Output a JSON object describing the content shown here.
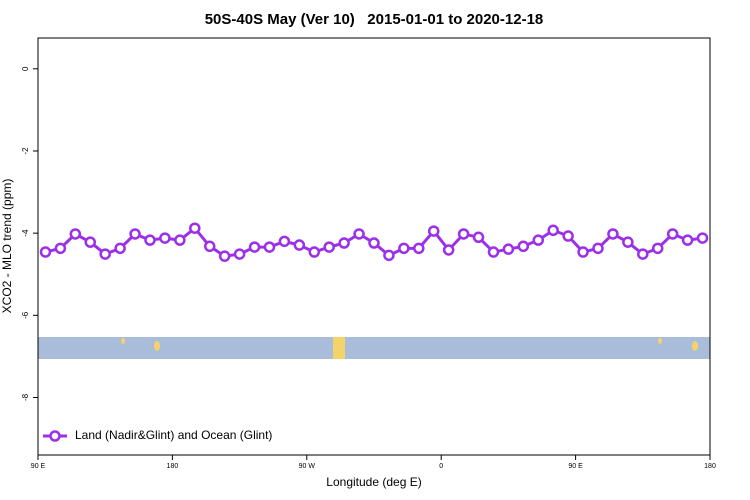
{
  "chart_data": {
    "type": "line",
    "title": "50S-40S May (Ver 10)   2015-01-01 to 2020-12-18",
    "xlabel": "Longitude (deg E)",
    "ylabel": "XCO2 - MLO trend (ppm)",
    "x": [
      95,
      105,
      115,
      125,
      135,
      145,
      155,
      165,
      175,
      185,
      195,
      205,
      215,
      225,
      235,
      245,
      255,
      265,
      275,
      285,
      295,
      305,
      315,
      325,
      335,
      345,
      355,
      365,
      375,
      385,
      395,
      405,
      415,
      425,
      435,
      445,
      455,
      465,
      475,
      485,
      495,
      505,
      515,
      525,
      535
    ],
    "series": [
      {
        "name": "Land (Nadir&Glint) and Ocean (Glint)",
        "color": "#9b30e8",
        "values": [
          -4.46,
          -4.37,
          -4.02,
          -4.22,
          -4.51,
          -4.37,
          -4.02,
          -4.17,
          -4.12,
          -4.17,
          -3.88,
          -4.32,
          -4.56,
          -4.51,
          -4.34,
          -4.34,
          -4.2,
          -4.29,
          -4.46,
          -4.34,
          -4.24,
          -4.02,
          -4.24,
          -4.54,
          -4.37,
          -4.37,
          -3.95,
          -4.41,
          -4.02,
          -4.1,
          -4.46,
          -4.39,
          -4.32,
          -4.17,
          -3.93,
          -4.07,
          -4.46,
          -4.37,
          -4.02,
          -4.22,
          -4.51,
          -4.37,
          -4.02,
          -4.17,
          -4.12
        ]
      }
    ],
    "xlim": [
      90,
      540
    ],
    "xticks": [
      {
        "value": 90,
        "label": "90 E"
      },
      180,
      {
        "value": 270,
        "label": "90 W"
      },
      {
        "value": 360,
        "label": "0"
      },
      {
        "value": 450,
        "label": "90 E"
      },
      {
        "value": 540,
        "label": "180"
      }
    ],
    "ylim": [
      -9.4,
      0.75
    ],
    "yticks": [
      0,
      -2,
      -4,
      -6,
      -8
    ],
    "legend": "bottom-left"
  }
}
